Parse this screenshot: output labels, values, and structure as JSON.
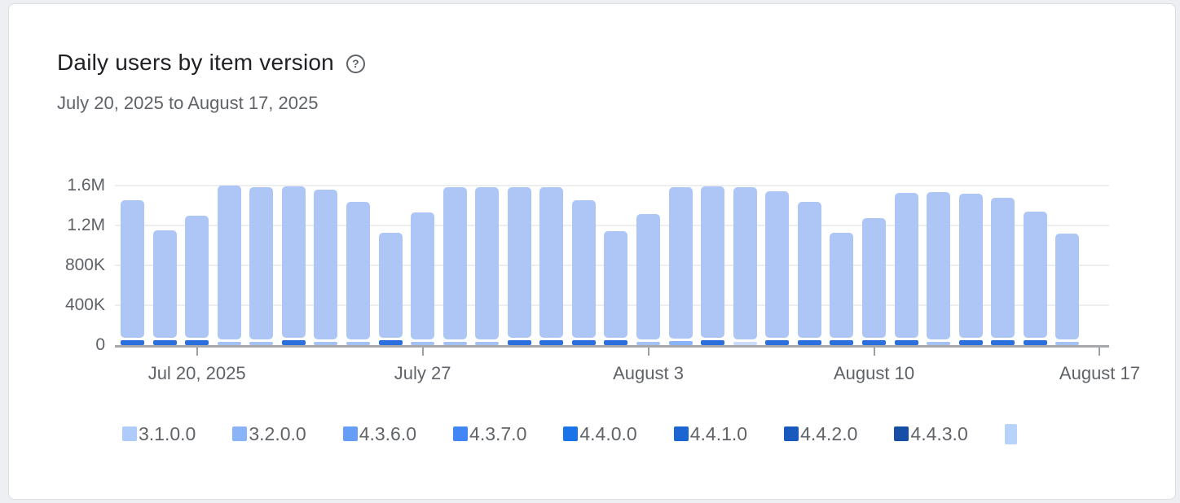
{
  "header": {
    "title": "Daily users by item version",
    "help_glyph": "?",
    "subtitle": "July 20, 2025 to August 17, 2025"
  },
  "chart_data": {
    "type": "bar",
    "stacked": true,
    "title": "Daily users by item version",
    "date_range": "July 20, 2025 to August 17, 2025",
    "xlabel": "",
    "ylabel": "",
    "unit": "daily users",
    "ylim": [
      0,
      1650000
    ],
    "grid": true,
    "y_ticks": [
      {
        "label": "0",
        "value": 0
      },
      {
        "label": "400K",
        "value": 400000
      },
      {
        "label": "800K",
        "value": 800000
      },
      {
        "label": "1.2M",
        "value": 1200000
      },
      {
        "label": "1.6M",
        "value": 1600000
      }
    ],
    "slots": 31,
    "x_ticks": [
      {
        "label": "Jul 20, 2025",
        "slot": 2
      },
      {
        "label": "July 27",
        "slot": 9
      },
      {
        "label": "August 3",
        "slot": 16
      },
      {
        "label": "August 10",
        "slot": 23
      },
      {
        "label": "August 17",
        "slot": 30
      }
    ],
    "colors": {
      "bar_body": "#aec6f6",
      "base_bright": "#2b6fde",
      "base_medium": "#8ab4f8",
      "base_light": "#a5c2f5",
      "base_pale": "#cadbfc"
    },
    "bars": [
      {
        "slot": 0,
        "total": 1450000,
        "base_value": 45000,
        "base": "bright"
      },
      {
        "slot": 1,
        "total": 1150000,
        "base_value": 45000,
        "base": "bright"
      },
      {
        "slot": 2,
        "total": 1295000,
        "base_value": 45000,
        "base": "bright"
      },
      {
        "slot": 3,
        "total": 1600000,
        "base_value": 30000,
        "base": "light"
      },
      {
        "slot": 4,
        "total": 1580000,
        "base_value": 30000,
        "base": "light"
      },
      {
        "slot": 5,
        "total": 1590000,
        "base_value": 45000,
        "base": "bright"
      },
      {
        "slot": 6,
        "total": 1560000,
        "base_value": 30000,
        "base": "light"
      },
      {
        "slot": 7,
        "total": 1435000,
        "base_value": 30000,
        "base": "light"
      },
      {
        "slot": 8,
        "total": 1130000,
        "base_value": 45000,
        "base": "bright"
      },
      {
        "slot": 9,
        "total": 1330000,
        "base_value": 30000,
        "base": "light"
      },
      {
        "slot": 10,
        "total": 1585000,
        "base_value": 30000,
        "base": "light"
      },
      {
        "slot": 11,
        "total": 1585000,
        "base_value": 30000,
        "base": "light"
      },
      {
        "slot": 12,
        "total": 1585000,
        "base_value": 45000,
        "base": "bright"
      },
      {
        "slot": 13,
        "total": 1580000,
        "base_value": 45000,
        "base": "bright"
      },
      {
        "slot": 14,
        "total": 1450000,
        "base_value": 45000,
        "base": "bright"
      },
      {
        "slot": 15,
        "total": 1145000,
        "base_value": 45000,
        "base": "bright"
      },
      {
        "slot": 16,
        "total": 1315000,
        "base_value": 30000,
        "base": "light"
      },
      {
        "slot": 17,
        "total": 1585000,
        "base_value": 38000,
        "base": "medium"
      },
      {
        "slot": 18,
        "total": 1590000,
        "base_value": 45000,
        "base": "bright"
      },
      {
        "slot": 19,
        "total": 1585000,
        "base_value": 30000,
        "base": "pale"
      },
      {
        "slot": 20,
        "total": 1545000,
        "base_value": 45000,
        "base": "bright"
      },
      {
        "slot": 21,
        "total": 1440000,
        "base_value": 45000,
        "base": "bright"
      },
      {
        "slot": 22,
        "total": 1125000,
        "base_value": 45000,
        "base": "bright"
      },
      {
        "slot": 23,
        "total": 1275000,
        "base_value": 45000,
        "base": "bright"
      },
      {
        "slot": 24,
        "total": 1530000,
        "base_value": 45000,
        "base": "bright"
      },
      {
        "slot": 25,
        "total": 1535000,
        "base_value": 30000,
        "base": "light"
      },
      {
        "slot": 26,
        "total": 1520000,
        "base_value": 45000,
        "base": "bright"
      },
      {
        "slot": 27,
        "total": 1475000,
        "base_value": 45000,
        "base": "bright"
      },
      {
        "slot": 28,
        "total": 1340000,
        "base_value": 45000,
        "base": "bright"
      },
      {
        "slot": 29,
        "total": 1115000,
        "base_value": 30000,
        "base": "light"
      }
    ]
  },
  "legend": {
    "items": [
      {
        "label": "3.1.0.0",
        "color": "#aecbfa",
        "clipped": false
      },
      {
        "label": "3.2.0.0",
        "color": "#8ab4f8",
        "clipped": false
      },
      {
        "label": "4.3.6.0",
        "color": "#669df6",
        "clipped": false
      },
      {
        "label": "4.3.7.0",
        "color": "#4285f4",
        "clipped": false
      },
      {
        "label": "4.4.0.0",
        "color": "#1a73e8",
        "clipped": false
      },
      {
        "label": "4.4.1.0",
        "color": "#1b66d2",
        "clipped": false
      },
      {
        "label": "4.4.2.0",
        "color": "#1a5abc",
        "clipped": false
      },
      {
        "label": "4.4.3.0",
        "color": "#174ea6",
        "clipped": false
      },
      {
        "label": "",
        "color": "#b7d2fb",
        "clipped": true
      }
    ]
  }
}
